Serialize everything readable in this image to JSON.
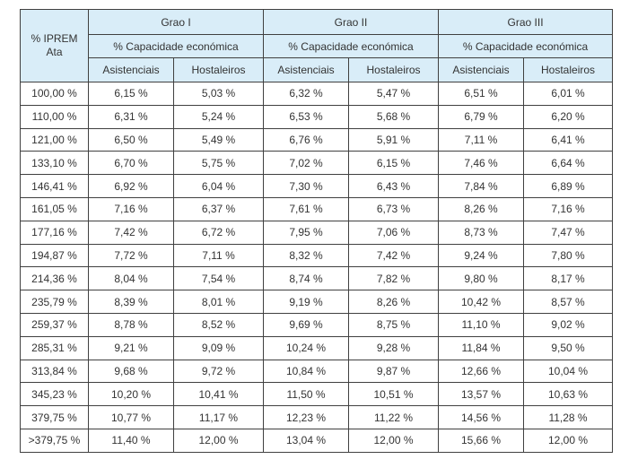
{
  "colors": {
    "header_bg": "#d9edf8",
    "border": "#404040",
    "text": "#333333",
    "page_bg": "#ffffff"
  },
  "table": {
    "corner": {
      "line1": "% IPREM",
      "line2": "Ata"
    },
    "groups": [
      {
        "label": "Grao I",
        "capacity_label": "% Capacidade económica",
        "columns": [
          "Asistenciais",
          "Hostaleiros"
        ]
      },
      {
        "label": "Grao II",
        "capacity_label": "% Capacidade económica",
        "columns": [
          "Asistenciais",
          "Hostaleiros"
        ]
      },
      {
        "label": "Grao III",
        "capacity_label": "% Capacidade económica",
        "columns": [
          "Asistenciais",
          "Hostaleiros"
        ]
      }
    ],
    "rows": [
      {
        "iprem": "100,00 %",
        "values": [
          "6,15 %",
          "5,03 %",
          "6,32 %",
          "5,47 %",
          "6,51 %",
          "6,01 %"
        ]
      },
      {
        "iprem": "110,00 %",
        "values": [
          "6,31 %",
          "5,24 %",
          "6,53 %",
          "5,68 %",
          "6,79 %",
          "6,20 %"
        ]
      },
      {
        "iprem": "121,00 %",
        "values": [
          "6,50 %",
          "5,49 %",
          "6,76 %",
          "5,91 %",
          "7,11 %",
          "6,41 %"
        ]
      },
      {
        "iprem": "133,10 %",
        "values": [
          "6,70 %",
          "5,75 %",
          "7,02 %",
          "6,15 %",
          "7,46 %",
          "6,64 %"
        ]
      },
      {
        "iprem": "146,41 %",
        "values": [
          "6,92 %",
          "6,04 %",
          "7,30 %",
          "6,43 %",
          "7,84 %",
          "6,89 %"
        ]
      },
      {
        "iprem": "161,05 %",
        "values": [
          "7,16 %",
          "6,37 %",
          "7,61 %",
          "6,73 %",
          "8,26 %",
          "7,16 %"
        ]
      },
      {
        "iprem": "177,16 %",
        "values": [
          "7,42 %",
          "6,72 %",
          "7,95 %",
          "7,06 %",
          "8,73 %",
          "7,47 %"
        ]
      },
      {
        "iprem": "194,87 %",
        "values": [
          "7,72 %",
          "7,11 %",
          "8,32 %",
          "7,42 %",
          "9,24 %",
          "7,80 %"
        ]
      },
      {
        "iprem": "214,36 %",
        "values": [
          "8,04 %",
          "7,54 %",
          "8,74 %",
          "7,82 %",
          "9,80 %",
          "8,17 %"
        ]
      },
      {
        "iprem": "235,79 %",
        "values": [
          "8,39 %",
          "8,01 %",
          "9,19 %",
          "8,26 %",
          "10,42 %",
          "8,57 %"
        ]
      },
      {
        "iprem": "259,37 %",
        "values": [
          "8,78 %",
          "8,52 %",
          "9,69 %",
          "8,75 %",
          "11,10 %",
          "9,02 %"
        ]
      },
      {
        "iprem": "285,31 %",
        "values": [
          "9,21 %",
          "9,09 %",
          "10,24 %",
          "9,28 %",
          "11,84 %",
          "9,50 %"
        ]
      },
      {
        "iprem": "313,84 %",
        "values": [
          "9,68 %",
          "9,72 %",
          "10,84 %",
          "9,87 %",
          "12,66 %",
          "10,04 %"
        ]
      },
      {
        "iprem": "345,23 %",
        "values": [
          "10,20 %",
          "10,41 %",
          "11,50 %",
          "10,51 %",
          "13,57 %",
          "10,63 %"
        ]
      },
      {
        "iprem": "379,75 %",
        "values": [
          "10,77 %",
          "11,17 %",
          "12,23 %",
          "11,22 %",
          "14,56 %",
          "11,28 %"
        ]
      },
      {
        "iprem": ">379,75 %",
        "values": [
          "11,40 %",
          "12,00 %",
          "13,04 %",
          "12,00 %",
          "15,66 %",
          "12,00 %"
        ]
      }
    ]
  }
}
